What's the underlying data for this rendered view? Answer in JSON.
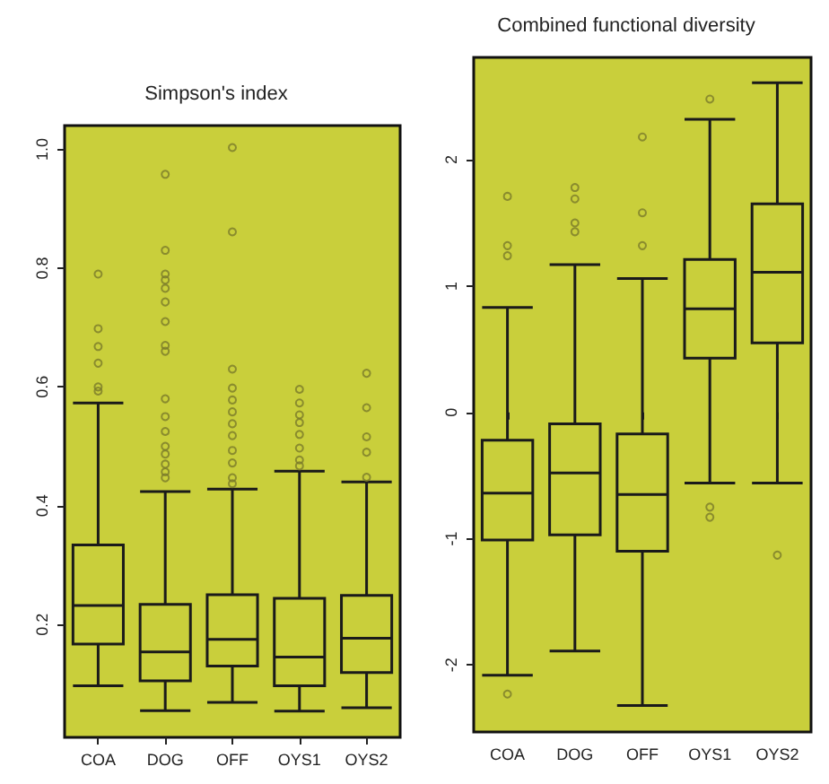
{
  "chart_data": [
    {
      "type": "box",
      "title": "Simpson's index",
      "categories": [
        "COA",
        "DOG",
        "OFF",
        "OYS1",
        "OYS2"
      ],
      "color": "#1a1a1a",
      "ylim": [
        0.01,
        1.04
      ],
      "yticks": [
        0.2,
        0.4,
        0.6,
        {
          "value": 0.8,
          "label": "0.8"
        },
        {
          "value": 1,
          "label": "1.0"
        }
      ],
      "grid": false,
      "boxes": [
        {
          "low": 0.097,
          "q1": 0.167,
          "median": 0.232,
          "q3": 0.334,
          "high": 0.573,
          "outliers": [
            0.79,
            0.698,
            0.668,
            0.64,
            0.6,
            0.593
          ]
        },
        {
          "low": 0.055,
          "q1": 0.105,
          "median": 0.154,
          "q3": 0.234,
          "high": 0.424,
          "outliers": [
            0.958,
            0.83,
            0.79,
            0.78,
            0.766,
            0.743,
            0.71,
            0.67,
            0.66,
            0.58,
            0.55,
            0.525,
            0.5,
            0.487,
            0.47,
            0.457,
            0.447
          ]
        },
        {
          "low": 0.069,
          "q1": 0.13,
          "median": 0.175,
          "q3": 0.25,
          "high": 0.428,
          "outliers": [
            1.003,
            0.861,
            0.63,
            0.598,
            0.578,
            0.558,
            0.538,
            0.518,
            0.493,
            0.472,
            0.447,
            0.437
          ]
        },
        {
          "low": 0.054,
          "q1": 0.097,
          "median": 0.145,
          "q3": 0.244,
          "high": 0.458,
          "outliers": [
            0.596,
            0.573,
            0.553,
            0.54,
            0.52,
            0.497,
            0.477,
            0.467
          ]
        },
        {
          "low": 0.06,
          "q1": 0.119,
          "median": 0.177,
          "q3": 0.249,
          "high": 0.44,
          "outliers": [
            0.623,
            0.565,
            0.516,
            0.49,
            0.448
          ]
        }
      ]
    },
    {
      "type": "box",
      "title": "Combined functional diversity",
      "categories": [
        "COA",
        "DOG",
        "OFF",
        "OYS1",
        "OYS2"
      ],
      "color": "#1a1a1a",
      "ylim": [
        -2.53,
        2.81
      ],
      "yticks": [
        -2,
        -1,
        0,
        1,
        2
      ],
      "grid": false,
      "boxes": [
        {
          "low": -2.08,
          "q1": -1.01,
          "median": -0.64,
          "q3": -0.22,
          "high": 0.83,
          "outliers": [
            1.71,
            1.32,
            1.24,
            -2.23
          ]
        },
        {
          "low": -1.89,
          "q1": -0.97,
          "median": -0.48,
          "q3": -0.09,
          "high": 1.17,
          "outliers": [
            1.78,
            1.69,
            1.5,
            1.43
          ]
        },
        {
          "low": -2.32,
          "q1": -1.1,
          "median": -0.65,
          "q3": -0.17,
          "high": 1.06,
          "outliers": [
            2.18,
            1.58,
            1.32
          ]
        },
        {
          "low": -0.56,
          "q1": 0.43,
          "median": 0.82,
          "q3": 1.21,
          "high": 2.32,
          "outliers": [
            2.48,
            -0.75,
            -0.83
          ]
        },
        {
          "low": -0.56,
          "q1": 0.55,
          "median": 1.11,
          "q3": 1.65,
          "high": 2.61,
          "outliers": [
            -1.13
          ]
        }
      ]
    }
  ]
}
